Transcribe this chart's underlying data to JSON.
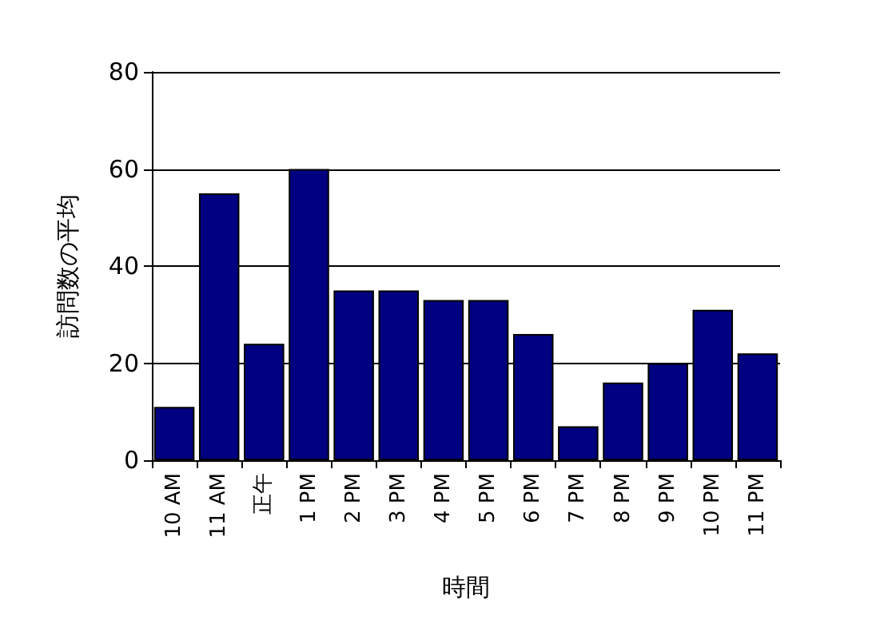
{
  "chart_data": {
    "type": "bar",
    "xlabel": "時間",
    "ylabel": "訪問数の平均",
    "categories": [
      "10 AM",
      "11 AM",
      "正午",
      "1 PM",
      "2 PM",
      "3 PM",
      "4 PM",
      "5 PM",
      "6 PM",
      "7 PM",
      "8 PM",
      "9 PM",
      "10 PM",
      "11 PM"
    ],
    "values": [
      11,
      55,
      24,
      60,
      35,
      35,
      33,
      33,
      26,
      7,
      16,
      20,
      31,
      22
    ],
    "color": "#000080",
    "ylim": [
      0,
      80
    ],
    "yticks": [
      0,
      20,
      40,
      60,
      80
    ],
    "grid": "y"
  }
}
